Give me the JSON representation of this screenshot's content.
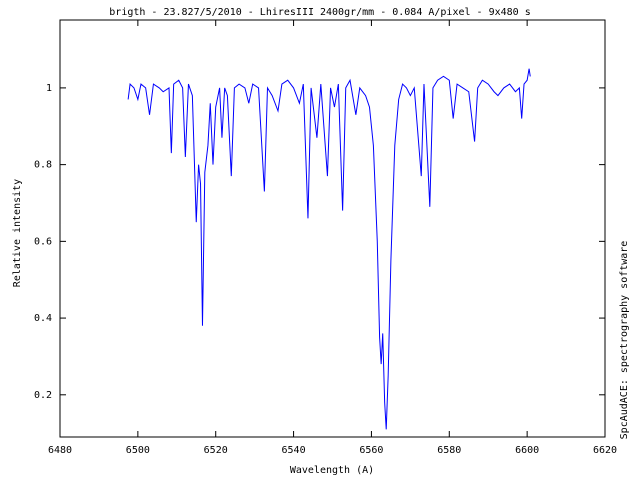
{
  "chart_data": {
    "type": "line",
    "title": "brigth - 23.827/5/2010 - LhiresIII 2400gr/mm - 0.084 A/pixel - 9x480 s",
    "x_label": "Wavelength (A)",
    "y_label": "Relative intensity",
    "side_note": "SpcAudACE: spectrography software",
    "xlim": [
      6480,
      6620
    ],
    "xticks": [
      6480,
      6500,
      6520,
      6540,
      6560,
      6580,
      6600,
      6620
    ],
    "ylim": [
      0.09,
      1.177
    ],
    "yticks": [
      0.2,
      0.4,
      0.6,
      0.8,
      1
    ],
    "grid": false,
    "series": [
      {
        "color": "#0000ff",
        "x": [
          6497.5,
          6498,
          6499,
          6500,
          6500.8,
          6502,
          6503,
          6504,
          6505.5,
          6506.5,
          6508,
          6508.6,
          6509.2,
          6510.5,
          6511.5,
          6512.2,
          6513,
          6514,
          6515,
          6515.6,
          6516.1,
          6516.6,
          6517.2,
          6518,
          6518.6,
          6519.3,
          6520,
          6521,
          6521.6,
          6522.3,
          6523,
          6524,
          6524.8,
          6526,
          6527.5,
          6528.5,
          6529.5,
          6531,
          6532.5,
          6533.3,
          6534.5,
          6536,
          6537,
          6538.5,
          6540,
          6541.5,
          6542.5,
          6543.7,
          6544.5,
          6546,
          6547,
          6548.7,
          6549.5,
          6550.5,
          6551.5,
          6552.6,
          6553.4,
          6554.5,
          6556,
          6557,
          6558.5,
          6559.5,
          6560.5,
          6561.5,
          6562.1,
          6562.5,
          6562.9,
          6563.4,
          6563.8,
          6564.3,
          6565,
          6566,
          6567,
          6568,
          6569,
          6570,
          6571,
          6572.8,
          6573.5,
          6575,
          6575.8,
          6577,
          6578.5,
          6580,
          6581,
          6582,
          6583.5,
          6585,
          6586.5,
          6587.3,
          6588.5,
          6590,
          6591.5,
          6592.5,
          6594,
          6595.5,
          6597,
          6598,
          6598.6,
          6599.2,
          6600,
          6600.5,
          6600.8
        ],
        "values": [
          0.97,
          1.01,
          1.0,
          0.97,
          1.01,
          1.0,
          0.93,
          1.01,
          1.0,
          0.99,
          1.0,
          0.83,
          1.01,
          1.02,
          1.0,
          0.82,
          1.01,
          0.98,
          0.65,
          0.8,
          0.75,
          0.38,
          0.78,
          0.85,
          0.96,
          0.8,
          0.95,
          1.0,
          0.87,
          1.0,
          0.98,
          0.77,
          1.0,
          1.01,
          1.0,
          0.96,
          1.01,
          1.0,
          0.73,
          1.0,
          0.98,
          0.94,
          1.01,
          1.02,
          1.0,
          0.96,
          1.01,
          0.66,
          1.0,
          0.87,
          1.01,
          0.77,
          1.0,
          0.95,
          1.01,
          0.68,
          1.0,
          1.02,
          0.93,
          1.0,
          0.98,
          0.95,
          0.85,
          0.6,
          0.35,
          0.28,
          0.36,
          0.18,
          0.11,
          0.25,
          0.55,
          0.85,
          0.97,
          1.01,
          1.0,
          0.98,
          1.0,
          0.77,
          1.01,
          0.69,
          1.0,
          1.02,
          1.03,
          1.02,
          0.92,
          1.01,
          1.0,
          0.99,
          0.86,
          1.0,
          1.02,
          1.01,
          0.99,
          0.98,
          1.0,
          1.01,
          0.99,
          1.0,
          0.92,
          1.01,
          1.02,
          1.05,
          1.03
        ]
      }
    ]
  }
}
